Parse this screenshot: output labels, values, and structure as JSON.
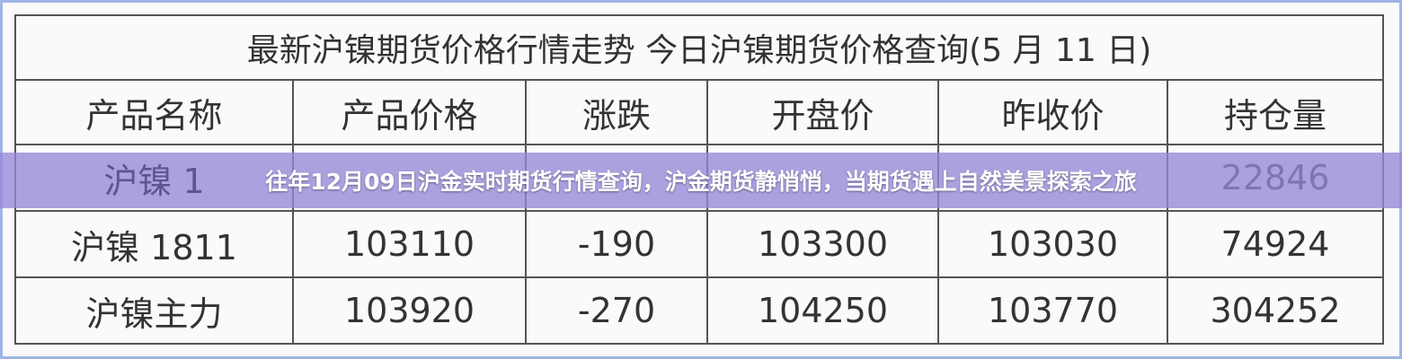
{
  "table": {
    "title": "最新沪镍期货价格行情走势  今日沪镍期货价格查询(5 月 11 日)",
    "headers": [
      "产品名称",
      "产品价格",
      "涨跌",
      "开盘价",
      "昨收价",
      "持仓量"
    ],
    "rows": [
      [
        "沪镍 1",
        "",
        "",
        "",
        "",
        "22846"
      ],
      [
        "沪镍 1811",
        "103110",
        "-190",
        "103300",
        "103030",
        "74924"
      ],
      [
        "沪镍主力",
        "103920",
        "-270",
        "104250",
        "103770",
        "304252"
      ]
    ]
  },
  "banner": {
    "text": "往年12月09日沪金实时期货行情查询，沪金期货静悄悄，当期货遇上自然美景探索之旅"
  },
  "colors": {
    "banner": "#9687d7",
    "frame": "#9fb4e6"
  }
}
